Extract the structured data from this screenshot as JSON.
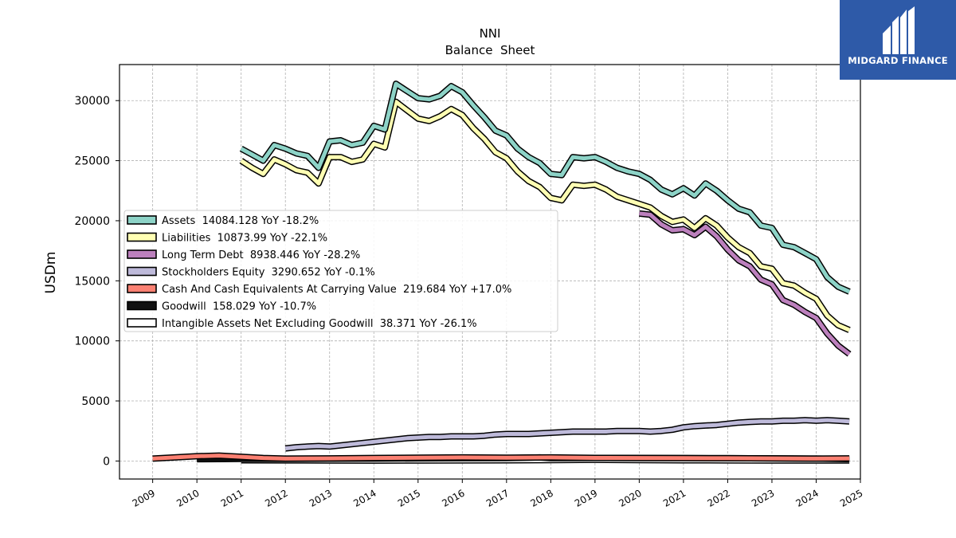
{
  "brand": {
    "name": "MIDGARD FINANCE"
  },
  "chart_data": {
    "type": "line",
    "title": "NNI",
    "subtitle": "Balance  Sheet",
    "xlabel": "",
    "ylabel": "USDm",
    "xlim": [
      2008.25,
      2025.0
    ],
    "ylim": [
      -1500,
      33000
    ],
    "yticks": [
      0,
      5000,
      10000,
      15000,
      20000,
      25000,
      30000
    ],
    "xticks": [
      "2009",
      "2010",
      "2011",
      "2012",
      "2013",
      "2014",
      "2015",
      "2016",
      "2017",
      "2018",
      "2019",
      "2020",
      "2021",
      "2022",
      "2023",
      "2024",
      "2025"
    ],
    "grid": true,
    "legend_position": "center-left",
    "series": [
      {
        "name": "Assets",
        "legend": "Assets  14084.128 YoY -18.2%",
        "color": "#8dd3c7",
        "x": [
          2011.0,
          2011.25,
          2011.5,
          2011.75,
          2012.0,
          2012.25,
          2012.5,
          2012.75,
          2013.0,
          2013.25,
          2013.5,
          2013.75,
          2014.0,
          2014.25,
          2014.5,
          2014.75,
          2015.0,
          2015.25,
          2015.5,
          2015.75,
          2016.0,
          2016.25,
          2016.5,
          2016.75,
          2017.0,
          2017.25,
          2017.5,
          2017.75,
          2018.0,
          2018.25,
          2018.5,
          2018.75,
          2019.0,
          2019.25,
          2019.5,
          2019.75,
          2020.0,
          2020.25,
          2020.5,
          2020.75,
          2021.0,
          2021.25,
          2021.5,
          2021.75,
          2022.0,
          2022.25,
          2022.5,
          2022.75,
          2023.0,
          2023.25,
          2023.5,
          2023.75,
          2024.0,
          2024.25,
          2024.5,
          2024.75
        ],
        "values": [
          26000,
          25500,
          25000,
          26300,
          26000,
          25600,
          25400,
          24400,
          26600,
          26700,
          26300,
          26500,
          27900,
          27600,
          31400,
          30800,
          30200,
          30100,
          30400,
          31200,
          30700,
          29600,
          28600,
          27500,
          27100,
          26000,
          25300,
          24800,
          23900,
          23800,
          25300,
          25200,
          25300,
          24900,
          24400,
          24100,
          23900,
          23400,
          22600,
          22200,
          22700,
          22100,
          23100,
          22500,
          21700,
          21000,
          20700,
          19600,
          19400,
          18000,
          17800,
          17300,
          16800,
          15300,
          14500,
          14100
        ]
      },
      {
        "name": "Liabilities",
        "legend": "Liabilities  10873.99 YoY -22.1%",
        "color": "#ffffb3",
        "x": [
          2011.0,
          2011.25,
          2011.5,
          2011.75,
          2012.0,
          2012.25,
          2012.5,
          2012.75,
          2013.0,
          2013.25,
          2013.5,
          2013.75,
          2014.0,
          2014.25,
          2014.5,
          2014.75,
          2015.0,
          2015.25,
          2015.5,
          2015.75,
          2016.0,
          2016.25,
          2016.5,
          2016.75,
          2017.0,
          2017.25,
          2017.5,
          2017.75,
          2018.0,
          2018.25,
          2018.5,
          2018.75,
          2019.0,
          2019.25,
          2019.5,
          2019.75,
          2020.0,
          2020.25,
          2020.5,
          2020.75,
          2021.0,
          2021.25,
          2021.5,
          2021.75,
          2022.0,
          2022.25,
          2022.5,
          2022.75,
          2023.0,
          2023.25,
          2023.5,
          2023.75,
          2024.0,
          2024.25,
          2024.5,
          2024.75
        ],
        "values": [
          25000,
          24400,
          23900,
          25100,
          24700,
          24200,
          24000,
          23100,
          25300,
          25300,
          24900,
          25100,
          26400,
          26100,
          29900,
          29200,
          28500,
          28300,
          28700,
          29300,
          28800,
          27700,
          26800,
          25700,
          25200,
          24100,
          23300,
          22800,
          21900,
          21700,
          23000,
          22900,
          23000,
          22600,
          22000,
          21700,
          21400,
          21100,
          20400,
          19900,
          20100,
          19400,
          20200,
          19600,
          18600,
          17800,
          17300,
          16200,
          16000,
          14800,
          14600,
          14000,
          13500,
          12100,
          11300,
          10900
        ]
      },
      {
        "name": "Long Term Debt",
        "legend": "Long Term Debt  8938.446 YoY -28.2%",
        "color": "#bc80bd",
        "x": [
          2020.0,
          2020.25,
          2020.5,
          2020.75,
          2021.0,
          2021.25,
          2021.5,
          2021.75,
          2022.0,
          2022.25,
          2022.5,
          2022.75,
          2023.0,
          2023.25,
          2023.5,
          2023.75,
          2024.0,
          2024.25,
          2024.5,
          2024.75
        ],
        "values": [
          20600,
          20500,
          19700,
          19200,
          19300,
          18800,
          19500,
          18700,
          17600,
          16700,
          16200,
          15100,
          14700,
          13400,
          13000,
          12400,
          11900,
          10600,
          9600,
          8900
        ]
      },
      {
        "name": "Stockholders Equity",
        "legend": "Stockholders Equity  3290.652 YoY -0.1%",
        "color": "#bebada",
        "x": [
          2012.0,
          2012.25,
          2012.5,
          2012.75,
          2013.0,
          2013.25,
          2013.5,
          2013.75,
          2014.0,
          2014.25,
          2014.5,
          2014.75,
          2015.0,
          2015.25,
          2015.5,
          2015.75,
          2016.0,
          2016.25,
          2016.5,
          2016.75,
          2017.0,
          2017.25,
          2017.5,
          2017.75,
          2018.0,
          2018.25,
          2018.5,
          2018.75,
          2019.0,
          2019.25,
          2019.5,
          2019.75,
          2020.0,
          2020.25,
          2020.5,
          2020.75,
          2021.0,
          2021.25,
          2021.5,
          2021.75,
          2022.0,
          2022.25,
          2022.5,
          2022.75,
          2023.0,
          2023.25,
          2023.5,
          2023.75,
          2024.0,
          2024.25,
          2024.5,
          2024.75
        ],
        "values": [
          1050,
          1150,
          1200,
          1250,
          1200,
          1300,
          1400,
          1500,
          1600,
          1700,
          1800,
          1900,
          1950,
          2000,
          2000,
          2050,
          2050,
          2050,
          2100,
          2200,
          2250,
          2250,
          2250,
          2300,
          2350,
          2400,
          2450,
          2450,
          2450,
          2450,
          2500,
          2500,
          2500,
          2450,
          2500,
          2600,
          2800,
          2900,
          2950,
          3000,
          3100,
          3200,
          3250,
          3300,
          3300,
          3350,
          3350,
          3400,
          3350,
          3400,
          3350,
          3300
        ]
      },
      {
        "name": "Cash And Cash Equivalents At Carrying Value",
        "legend": "Cash And Cash Equivalents At Carrying Value  219.684 YoY +17.0%",
        "color": "#fb8072",
        "x": [
          2009.0,
          2009.5,
          2010.0,
          2010.5,
          2011.0,
          2011.5,
          2012.0,
          2013.0,
          2014.0,
          2015.0,
          2016.0,
          2017.0,
          2018.0,
          2019.0,
          2020.0,
          2021.0,
          2022.0,
          2023.0,
          2024.0,
          2024.75
        ],
        "values": [
          200,
          300,
          400,
          450,
          350,
          250,
          200,
          220,
          250,
          280,
          300,
          280,
          300,
          260,
          250,
          240,
          230,
          220,
          200,
          220
        ]
      },
      {
        "name": "Goodwill",
        "legend": "Goodwill  158.029 YoY -10.7%",
        "color": "#111111",
        "x": [
          2010.0,
          2010.5,
          2011.0,
          2012.0,
          2013.0,
          2014.0,
          2015.0,
          2016.0,
          2017.0,
          2017.75,
          2018.0,
          2019.0,
          2020.0,
          2021.0,
          2022.0,
          2023.0,
          2024.0,
          2024.75
        ],
        "values": [
          150,
          160,
          170,
          180,
          190,
          200,
          220,
          230,
          240,
          300,
          240,
          260,
          250,
          240,
          230,
          220,
          200,
          158
        ]
      },
      {
        "name": "Intangible Assets Net Excluding Goodwill",
        "legend": "Intangible Assets Net Excluding Goodwill  38.371 YoY -26.1%",
        "color": "#ffffff",
        "x": [
          2011.0,
          2012.0,
          2013.0,
          2014.0,
          2015.0,
          2016.0,
          2017.0,
          2018.0,
          2019.0,
          2020.0,
          2021.0,
          2022.0,
          2023.0,
          2024.0,
          2024.75
        ],
        "values": [
          60,
          50,
          40,
          30,
          45,
          50,
          60,
          80,
          100,
          70,
          60,
          50,
          45,
          40,
          38
        ]
      }
    ]
  }
}
